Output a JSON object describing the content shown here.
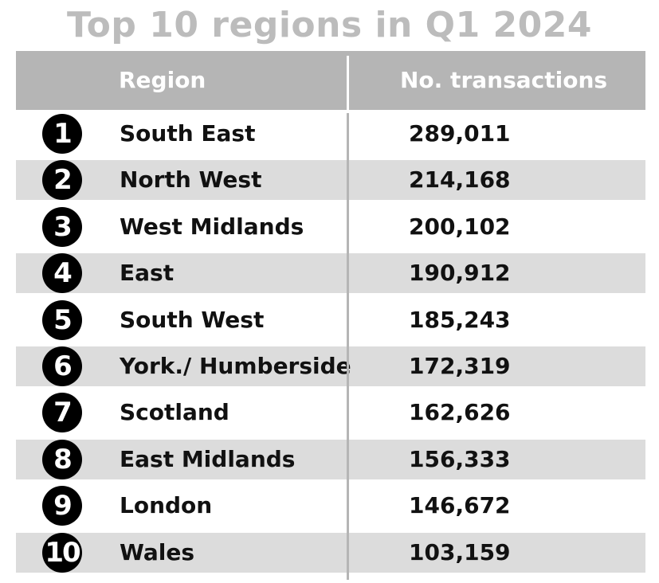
{
  "title": "Top 10 regions in Q1 2024",
  "chart_data": {
    "type": "table",
    "title": "Top 10 regions in Q1 2024",
    "columns": [
      "Region",
      "No. transactions"
    ],
    "rows": [
      {
        "rank": "1",
        "region": "South East",
        "transactions": "289,011"
      },
      {
        "rank": "2",
        "region": "North West",
        "transactions": "214,168"
      },
      {
        "rank": "3",
        "region": "West Midlands",
        "transactions": "200,102"
      },
      {
        "rank": "4",
        "region": "East",
        "transactions": "190,912"
      },
      {
        "rank": "5",
        "region": "South West",
        "transactions": "185,243"
      },
      {
        "rank": "6",
        "region": "York./ Humberside",
        "transactions": "172,319"
      },
      {
        "rank": "7",
        "region": "Scotland",
        "transactions": "162,626"
      },
      {
        "rank": "8",
        "region": "East Midlands",
        "transactions": "156,333"
      },
      {
        "rank": "9",
        "region": "London",
        "transactions": "146,672"
      },
      {
        "rank": "10",
        "region": "Wales",
        "transactions": "103,159"
      }
    ]
  },
  "colors": {
    "header_bg": "#b5b5b5",
    "shade_row": "#dcdcdc",
    "title": "#bcbcbc",
    "rank_badge": "#000000"
  }
}
